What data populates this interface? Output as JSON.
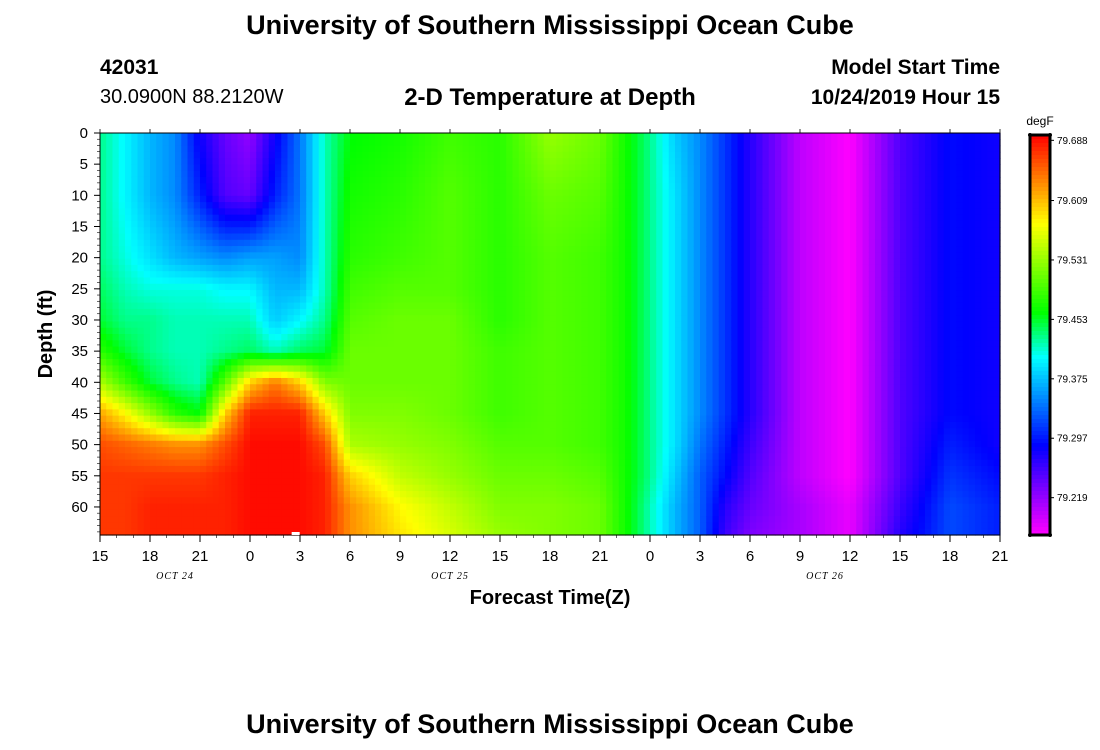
{
  "header": {
    "title": "University of Southern Mississippi Ocean Cube",
    "station_id": "42031",
    "location": "30.0900N 88.2120W",
    "chart_title": "2-D Temperature at Depth",
    "model_label": "Model Start Time",
    "model_time": "10/24/2019 Hour 15"
  },
  "footer": {
    "title": "University of Southern Mississippi Ocean Cube"
  },
  "colors": {
    "colormap": [
      "#ff00ff",
      "#8000ff",
      "#0000ff",
      "#0080ff",
      "#00ffff",
      "#00ff00",
      "#80ff00",
      "#ffff00",
      "#ff8000",
      "#ff0000"
    ]
  },
  "chart_data": {
    "type": "heatmap",
    "xlabel": "Forecast Time(Z)",
    "ylabel": "Depth (ft)",
    "x_ticks": [
      "15",
      "18",
      "21",
      "0",
      "3",
      "6",
      "9",
      "12",
      "15",
      "18",
      "21",
      "0",
      "3",
      "6",
      "9",
      "12",
      "15",
      "18",
      "21"
    ],
    "x_hours": [
      0,
      3,
      6,
      9,
      12,
      15,
      18,
      21,
      24,
      27,
      30,
      33,
      36,
      39,
      42,
      45,
      48,
      51,
      54
    ],
    "x_date_labels": [
      {
        "label": "OCT 24",
        "hour": 4.5
      },
      {
        "label": "OCT 25",
        "hour": 21
      },
      {
        "label": "OCT 26",
        "hour": 43.5
      }
    ],
    "xlim": [
      0,
      54
    ],
    "y_ticks": [
      0,
      5,
      10,
      15,
      20,
      25,
      30,
      35,
      40,
      45,
      50,
      55,
      60
    ],
    "ylim": [
      0,
      64.5
    ],
    "colorbar": {
      "unit": "degF",
      "ticks": [
        79.688,
        79.609,
        79.531,
        79.453,
        79.375,
        79.297,
        79.219
      ],
      "range": [
        79.17,
        79.695
      ]
    },
    "field_hours": [
      0,
      1.5,
      3,
      4.5,
      6,
      7.5,
      9,
      10.5,
      12,
      13.5,
      15,
      18,
      21,
      24,
      27,
      30,
      31.5,
      33,
      34.5,
      36,
      37.5,
      39,
      42,
      45,
      48,
      51,
      54
    ],
    "field_depths": [
      0,
      10,
      20,
      25,
      30,
      35,
      40,
      45,
      50,
      55,
      60,
      64.5
    ],
    "field_values": [
      [
        79.43,
        79.43,
        79.43,
        79.44,
        79.45,
        79.48,
        79.54,
        79.62,
        79.66,
        79.67,
        79.67,
        79.67
      ],
      [
        79.4,
        79.4,
        79.41,
        79.42,
        79.43,
        79.45,
        79.49,
        79.58,
        79.65,
        79.67,
        79.67,
        79.67
      ],
      [
        79.37,
        79.37,
        79.39,
        79.41,
        79.43,
        79.43,
        79.45,
        79.53,
        79.64,
        79.67,
        79.68,
        79.68
      ],
      [
        79.35,
        79.35,
        79.37,
        79.41,
        79.42,
        79.42,
        79.43,
        79.48,
        79.63,
        79.67,
        79.68,
        79.68
      ],
      [
        79.28,
        79.3,
        79.36,
        79.41,
        79.42,
        79.42,
        79.42,
        79.46,
        79.63,
        79.67,
        79.68,
        79.68
      ],
      [
        79.24,
        79.25,
        79.35,
        79.4,
        79.42,
        79.43,
        79.5,
        79.6,
        79.66,
        79.68,
        79.68,
        79.68
      ],
      [
        79.22,
        79.24,
        79.36,
        79.4,
        79.42,
        79.44,
        79.6,
        79.68,
        79.69,
        79.69,
        79.69,
        79.69
      ],
      [
        79.28,
        79.3,
        79.36,
        79.37,
        79.38,
        79.42,
        79.64,
        79.68,
        79.69,
        79.69,
        79.69,
        79.69
      ],
      [
        79.34,
        79.34,
        79.35,
        79.37,
        79.4,
        79.44,
        79.6,
        79.68,
        79.69,
        79.69,
        79.69,
        79.69
      ],
      [
        79.42,
        79.42,
        79.42,
        79.42,
        79.43,
        79.45,
        79.52,
        79.6,
        79.66,
        79.68,
        79.68,
        79.68
      ],
      [
        79.46,
        79.47,
        79.48,
        79.49,
        79.5,
        79.51,
        79.51,
        79.52,
        79.54,
        79.6,
        79.63,
        79.63
      ],
      [
        79.47,
        79.48,
        79.49,
        79.5,
        79.51,
        79.51,
        79.51,
        79.52,
        79.53,
        79.55,
        79.58,
        79.59
      ],
      [
        79.49,
        79.5,
        79.5,
        79.5,
        79.51,
        79.51,
        79.51,
        79.51,
        79.52,
        79.53,
        79.55,
        79.56
      ],
      [
        79.48,
        79.48,
        79.48,
        79.48,
        79.48,
        79.49,
        79.49,
        79.49,
        79.5,
        79.51,
        79.52,
        79.53
      ],
      [
        79.53,
        79.51,
        79.5,
        79.5,
        79.5,
        79.5,
        79.5,
        79.5,
        79.5,
        79.51,
        79.52,
        79.52
      ],
      [
        79.51,
        79.5,
        79.49,
        79.49,
        79.49,
        79.49,
        79.49,
        79.49,
        79.49,
        79.5,
        79.51,
        79.51
      ],
      [
        79.47,
        79.47,
        79.47,
        79.47,
        79.47,
        79.47,
        79.47,
        79.47,
        79.47,
        79.47,
        79.47,
        79.47
      ],
      [
        79.43,
        79.43,
        79.43,
        79.43,
        79.43,
        79.43,
        79.43,
        79.43,
        79.43,
        79.43,
        79.42,
        79.42
      ],
      [
        79.38,
        79.39,
        79.39,
        79.39,
        79.39,
        79.39,
        79.39,
        79.39,
        79.39,
        79.38,
        79.37,
        79.37
      ],
      [
        79.35,
        79.35,
        79.35,
        79.35,
        79.35,
        79.35,
        79.35,
        79.35,
        79.34,
        79.33,
        79.33,
        79.33
      ],
      [
        79.31,
        79.31,
        79.31,
        79.31,
        79.31,
        79.31,
        79.31,
        79.31,
        79.3,
        79.29,
        79.27,
        79.26
      ],
      [
        79.27,
        79.27,
        79.27,
        79.27,
        79.27,
        79.27,
        79.27,
        79.27,
        79.26,
        79.25,
        79.24,
        79.23
      ],
      [
        79.2,
        79.2,
        79.2,
        79.2,
        79.2,
        79.2,
        79.2,
        79.2,
        79.2,
        79.2,
        79.21,
        79.21
      ],
      [
        79.17,
        79.17,
        79.17,
        79.17,
        79.17,
        79.17,
        79.17,
        79.17,
        79.17,
        79.17,
        79.18,
        79.18
      ],
      [
        79.25,
        79.25,
        79.25,
        79.25,
        79.25,
        79.25,
        79.25,
        79.25,
        79.25,
        79.25,
        79.26,
        79.27
      ],
      [
        79.29,
        79.29,
        79.29,
        79.29,
        79.29,
        79.29,
        79.29,
        79.29,
        79.3,
        79.31,
        79.32,
        79.32
      ],
      [
        79.28,
        79.28,
        79.28,
        79.28,
        79.28,
        79.28,
        79.28,
        79.28,
        79.28,
        79.29,
        79.3,
        79.3
      ]
    ]
  }
}
